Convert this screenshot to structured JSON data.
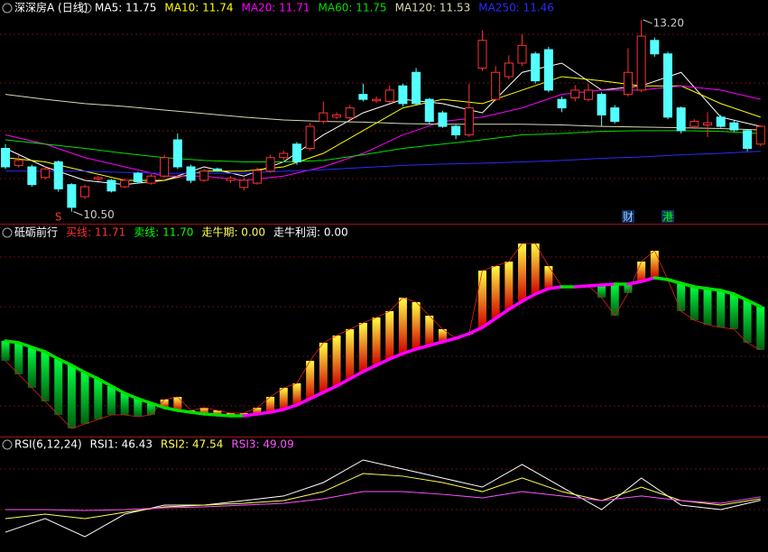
{
  "chart_data": [
    {
      "type": "candlestick",
      "title": "深深房A (日线)",
      "open": [
        11.39,
        11.15,
        11.13,
        10.98,
        11.2,
        10.88,
        10.71,
        10.96,
        10.94,
        10.85,
        11.04,
        10.9,
        11.0,
        11.51,
        11.13,
        10.94,
        11.1,
        10.94,
        10.84,
        10.9,
        11.07,
        11.26,
        11.45,
        11.39,
        11.77,
        11.83,
        11.82,
        12.15,
        12.06,
        12.05,
        12.27,
        12.46,
        12.08,
        11.89,
        11.7,
        11.58,
        12.52,
        12.08,
        12.4,
        12.59,
        12.72,
        12.78,
        12.08,
        12.1,
        12.08,
        12.15,
        11.96,
        12.15,
        12.21,
        12.91,
        12.72,
        11.96,
        11.7,
        11.72,
        11.83,
        11.75,
        11.64,
        11.45
      ],
      "high": [
        11.45,
        11.3,
        11.16,
        11.14,
        11.22,
        10.9,
        10.88,
        11.0,
        10.96,
        10.97,
        11.06,
        11.03,
        11.3,
        11.6,
        11.16,
        11.1,
        11.12,
        11.0,
        10.98,
        11.12,
        11.3,
        11.36,
        11.48,
        11.75,
        12.05,
        11.9,
        12.0,
        12.3,
        12.12,
        12.28,
        12.3,
        12.52,
        12.1,
        11.92,
        11.72,
        12.3,
        13.05,
        12.55,
        12.7,
        13.0,
        12.75,
        12.82,
        12.12,
        12.28,
        12.3,
        12.18,
        12.0,
        12.8,
        13.2,
        12.95,
        12.75,
        11.98,
        11.8,
        11.9,
        11.86,
        11.78,
        11.66,
        11.72
      ],
      "low": [
        11.1,
        11.12,
        10.85,
        10.95,
        10.78,
        10.5,
        10.68,
        10.93,
        10.77,
        10.83,
        10.9,
        10.88,
        10.98,
        11.1,
        10.9,
        10.92,
        11.06,
        10.9,
        10.8,
        10.88,
        11.05,
        11.22,
        11.16,
        11.36,
        11.74,
        11.8,
        11.79,
        12.05,
        12.03,
        12.02,
        11.98,
        12.0,
        11.74,
        11.68,
        11.52,
        11.55,
        12.48,
        12.05,
        12.36,
        12.55,
        12.3,
        12.18,
        11.9,
        12.05,
        12.05,
        11.7,
        11.74,
        12.12,
        12.18,
        12.68,
        11.8,
        11.6,
        11.66,
        11.55,
        11.68,
        11.62,
        11.35,
        11.42
      ],
      "close": [
        11.13,
        11.22,
        10.88,
        11.1,
        10.82,
        10.56,
        10.85,
        10.98,
        10.79,
        10.94,
        10.92,
        11.0,
        11.26,
        11.13,
        10.94,
        11.07,
        11.08,
        10.97,
        10.94,
        11.08,
        11.26,
        11.32,
        11.2,
        11.7,
        11.89,
        11.86,
        11.96,
        12.08,
        12.08,
        12.21,
        12.02,
        12.02,
        11.77,
        11.7,
        11.58,
        11.96,
        12.91,
        12.46,
        12.59,
        12.84,
        12.34,
        12.21,
        11.96,
        12.21,
        12.21,
        11.86,
        11.77,
        12.46,
        12.97,
        12.72,
        11.83,
        11.64,
        11.77,
        11.75,
        11.7,
        11.65,
        11.39,
        11.7
      ],
      "ylim": [
        10.33,
        13.25
      ],
      "up_color": "#ff3232",
      "down_color": "#54ffff",
      "ma_x": [
        0,
        3,
        6,
        9,
        12,
        15,
        18,
        21,
        24,
        27,
        30,
        33,
        36,
        39,
        42,
        45,
        48,
        51,
        54,
        57
      ],
      "series": [
        {
          "name": "MA5: 11.75",
          "color": "#ffffff",
          "values": [
            11.39,
            11.13,
            10.94,
            10.88,
            10.94,
            11.13,
            11.0,
            11.2,
            11.58,
            11.89,
            12.08,
            12.02,
            11.89,
            12.46,
            12.59,
            12.21,
            12.27,
            12.46,
            11.83,
            11.7
          ]
        },
        {
          "name": "MA10: 11.74",
          "color": "#ffff00",
          "values": [
            11.26,
            11.2,
            11.07,
            10.94,
            10.94,
            11.07,
            11.07,
            11.13,
            11.32,
            11.64,
            11.96,
            12.08,
            12.02,
            12.21,
            12.4,
            12.34,
            12.27,
            12.27,
            12.02,
            11.83
          ]
        },
        {
          "name": "MA20: 11.71",
          "color": "#ff00ff",
          "values": [
            11.58,
            11.45,
            11.26,
            11.13,
            11.0,
            11.0,
            10.94,
            11.0,
            11.13,
            11.32,
            11.58,
            11.77,
            11.83,
            11.96,
            12.15,
            12.21,
            12.21,
            12.27,
            12.21,
            12.08
          ]
        },
        {
          "name": "MA60: 11.75",
          "color": "#00e000",
          "values": [
            11.51,
            11.45,
            11.39,
            11.32,
            11.26,
            11.22,
            11.2,
            11.2,
            11.22,
            11.3,
            11.39,
            11.45,
            11.51,
            11.58,
            11.6,
            11.63,
            11.64,
            11.64,
            11.63,
            11.6
          ]
        },
        {
          "name": "MA120: 11.53",
          "color": "#d8d8b0",
          "values": [
            12.15,
            12.08,
            12.02,
            11.98,
            11.93,
            11.88,
            11.83,
            11.79,
            11.77,
            11.76,
            11.74,
            11.73,
            11.73,
            11.73,
            11.72,
            11.7,
            11.69,
            11.68,
            11.67,
            11.65
          ]
        },
        {
          "name": "MA250: 11.46",
          "color": "#2a2aff",
          "values": [
            11.07,
            11.07,
            11.07,
            11.05,
            11.04,
            11.04,
            11.04,
            11.07,
            11.09,
            11.12,
            11.15,
            11.17,
            11.18,
            11.2,
            11.22,
            11.25,
            11.27,
            11.3,
            11.32,
            11.35
          ]
        }
      ],
      "annotations": [
        {
          "value": 13.2,
          "label": "13.20",
          "index": 48
        },
        {
          "value": 10.5,
          "label": "10.50",
          "index": 5
        }
      ],
      "markers": [
        {
          "text": "S",
          "index": 4,
          "color": "#ff3232"
        },
        {
          "text": "财",
          "index": 47,
          "color": "#a0c8ff"
        },
        {
          "text": "港",
          "index": 50,
          "color": "#00ff00"
        }
      ]
    },
    {
      "type": "bar",
      "title": "砥砺前行",
      "legend": [
        {
          "text": "买线: 11.71",
          "color": "#ff3232"
        },
        {
          "text": "卖线: 11.70",
          "color": "#00ff00"
        },
        {
          "text": "走牛期: 0.00",
          "color": "#ffff54"
        },
        {
          "text": "走牛利润: 0.00",
          "color": "#ffffff"
        }
      ],
      "line": [
        106,
        104,
        99,
        94,
        86,
        79,
        71,
        64,
        56,
        48,
        42,
        37,
        32,
        29,
        27,
        25,
        24,
        23,
        23,
        25,
        27,
        30,
        35,
        42,
        49,
        56,
        64,
        72,
        79,
        86,
        92,
        97,
        101,
        105,
        109,
        114,
        121,
        131,
        141,
        150,
        158,
        164,
        166,
        166,
        167,
        168,
        169,
        169,
        172,
        176,
        174,
        170,
        166,
        164,
        162,
        158,
        151,
        144
      ],
      "bars": [
        84,
        69,
        54,
        39,
        24,
        9,
        14,
        19,
        24,
        24,
        22,
        24,
        41,
        44,
        29,
        32,
        29,
        26,
        26,
        32,
        44,
        54,
        59,
        84,
        104,
        112,
        119,
        126,
        132,
        139,
        154,
        149,
        134,
        119,
        109,
        114,
        184,
        189,
        194,
        214,
        214,
        189,
        166,
        166,
        167,
        154,
        134,
        159,
        194,
        206,
        174,
        139,
        129,
        124,
        121,
        119,
        104,
        96
      ],
      "ylim": [
        0,
        234
      ],
      "rise_color": "#ff00ff",
      "fall_color": "#00e000"
    },
    {
      "type": "line",
      "title": "RSI(6,12,24)",
      "x": [
        0,
        3,
        6,
        9,
        12,
        15,
        18,
        21,
        24,
        27,
        30,
        33,
        36,
        39,
        42,
        45,
        48,
        51,
        54,
        57
      ],
      "series": [
        {
          "name": "RSI1: 46.43",
          "color": "#ffffff",
          "values": [
            21.8,
            32.3,
            18.3,
            35.7,
            42.7,
            42.7,
            46.2,
            49.7,
            60.1,
            77.5,
            70.5,
            63.6,
            56.6,
            74.0,
            56.6,
            39.2,
            63.6,
            42.7,
            39.2,
            46.43
          ]
        },
        {
          "name": "RSI2: 47.54",
          "color": "#ffff54",
          "values": [
            32.3,
            35.7,
            32.3,
            37.1,
            41.3,
            42.7,
            44.1,
            46.2,
            53.1,
            67.0,
            65.0,
            60.1,
            53.1,
            63.6,
            53.1,
            46.2,
            56.6,
            46.2,
            42.7,
            47.54
          ]
        },
        {
          "name": "RSI3: 49.09",
          "color": "#ff54ff",
          "values": [
            39.2,
            39.2,
            38.5,
            39.2,
            40.6,
            41.3,
            42.7,
            44.1,
            47.6,
            53.1,
            53.1,
            51.0,
            48.3,
            53.1,
            49.7,
            46.2,
            49.7,
            46.2,
            44.1,
            49.09
          ]
        }
      ],
      "ylim": [
        10,
        90
      ]
    }
  ]
}
